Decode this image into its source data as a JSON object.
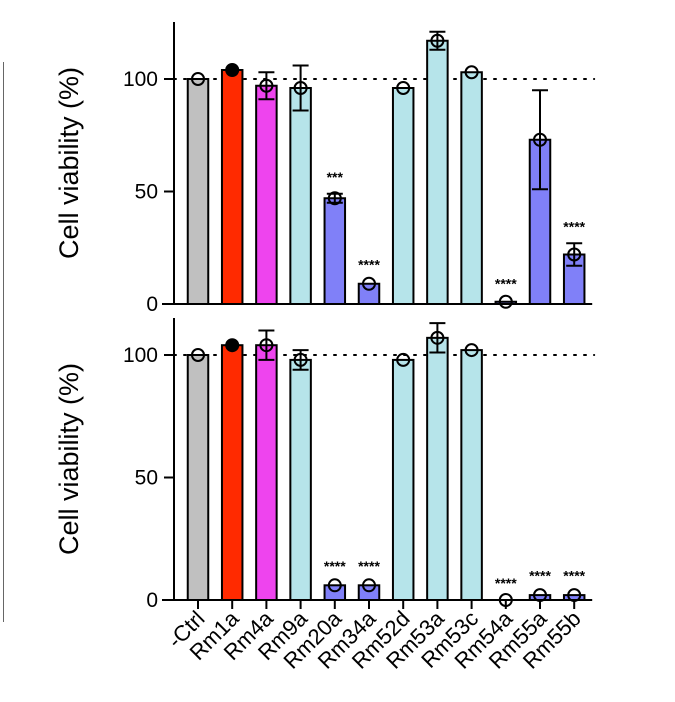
{
  "chart_data": [
    {
      "type": "bar",
      "ylabel": "Cell viability (%)",
      "yticks": [
        "0",
        "50",
        "100"
      ],
      "ylim": [
        0,
        125
      ],
      "reference_line": 100,
      "categories": [
        "-Ctrl",
        "Rm1a",
        "Rm4a",
        "Rm9a",
        "Rm20a",
        "Rm34a",
        "Rm52d",
        "Rm53a",
        "Rm53c",
        "Rm54a",
        "Rm55a",
        "Rm55b"
      ],
      "values": [
        100,
        104,
        97,
        96,
        47,
        9,
        96,
        117,
        103,
        1,
        73,
        22
      ],
      "errors": [
        0,
        1,
        6,
        10,
        2,
        1,
        1,
        4,
        1,
        0.5,
        22,
        5
      ],
      "significance": [
        "",
        "",
        "",
        "",
        "***",
        "****",
        "",
        "",
        "",
        "****",
        "",
        "****"
      ],
      "bar_colors": [
        "#c0c0c0",
        "#ff2a00",
        "#ee44ee",
        "#b6e4ea",
        "#8080f8",
        "#8080f8",
        "#b6e4ea",
        "#b6e4ea",
        "#b6e4ea",
        "#8080f8",
        "#8080f8",
        "#8080f8"
      ]
    },
    {
      "type": "bar",
      "ylabel": "Cell viability (%)",
      "yticks": [
        "0",
        "50",
        "100"
      ],
      "ylim": [
        0,
        115
      ],
      "reference_line": 100,
      "categories": [
        "-Ctrl",
        "Rm1a",
        "Rm4a",
        "Rm9a",
        "Rm20a",
        "Rm34a",
        "Rm52d",
        "Rm53a",
        "Rm53c",
        "Rm54a",
        "Rm55a",
        "Rm55b"
      ],
      "values": [
        100,
        104,
        104,
        98,
        6,
        6,
        98,
        107,
        102,
        0,
        2,
        2
      ],
      "errors": [
        0,
        1,
        6,
        4,
        1,
        1,
        1,
        6,
        1,
        0,
        1,
        1
      ],
      "significance": [
        "",
        "",
        "",
        "",
        "****",
        "****",
        "",
        "",
        "",
        "****",
        "****",
        "****"
      ],
      "bar_colors": [
        "#c0c0c0",
        "#ff2a00",
        "#ee44ee",
        "#b6e4ea",
        "#8080f8",
        "#8080f8",
        "#b6e4ea",
        "#b6e4ea",
        "#b6e4ea",
        "#8080f8",
        "#8080f8",
        "#8080f8"
      ]
    }
  ]
}
